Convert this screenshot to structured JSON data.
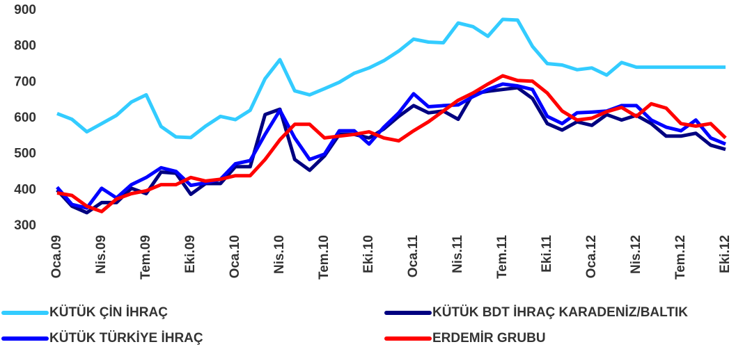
{
  "chart_data": {
    "type": "line",
    "categories": [
      "Oca.09",
      null,
      null,
      "Nis.09",
      null,
      null,
      "Tem.09",
      null,
      null,
      "Eki.09",
      null,
      null,
      "Oca.10",
      null,
      null,
      "Nis.10",
      null,
      null,
      "Tem.10",
      null,
      null,
      "Eki.10",
      null,
      null,
      "Oca.11",
      null,
      null,
      "Nis.11",
      null,
      null,
      "Tem.11",
      null,
      null,
      "Eki.11",
      null,
      null,
      "Oca.12",
      null,
      null,
      "Nis.12",
      null,
      null,
      "Tem.12",
      null,
      null,
      "Eki.12"
    ],
    "series": [
      {
        "name": "KÜTÜK ÇİN İHRAÇ",
        "color": "#33ccff",
        "values": [
          613,
          597,
          562,
          585,
          608,
          645,
          665,
          577,
          548,
          546,
          578,
          605,
          596,
          622,
          710,
          763,
          676,
          665,
          682,
          700,
          725,
          740,
          760,
          787,
          820,
          812,
          810,
          865,
          855,
          828,
          875,
          873,
          800,
          752,
          748,
          735,
          740,
          720,
          755,
          742,
          742,
          742,
          742,
          742,
          742,
          742
        ]
      },
      {
        "name": "KÜTÜK BDT İHRAÇ KARADENİZ/BALTIK",
        "color": "#000080",
        "values": [
          400,
          355,
          337,
          365,
          365,
          405,
          390,
          450,
          447,
          388,
          418,
          418,
          465,
          465,
          610,
          625,
          485,
          455,
          495,
          555,
          555,
          545,
          570,
          605,
          635,
          615,
          620,
          597,
          668,
          675,
          680,
          685,
          655,
          585,
          567,
          590,
          580,
          610,
          595,
          608,
          585,
          550,
          550,
          558,
          525,
          513
        ]
      },
      {
        "name": "KÜTÜK TÜRKİYE İHRAÇ",
        "color": "#0000ff",
        "values": [
          408,
          360,
          350,
          405,
          378,
          415,
          435,
          462,
          452,
          413,
          420,
          430,
          473,
          482,
          555,
          622,
          545,
          485,
          500,
          565,
          565,
          528,
          575,
          615,
          668,
          632,
          635,
          637,
          660,
          680,
          695,
          690,
          680,
          605,
          585,
          615,
          617,
          620,
          635,
          635,
          595,
          575,
          565,
          595,
          545,
          528
        ]
      },
      {
        "name": "ERDEMİR GRUBU",
        "color": "#ff0000",
        "values": [
          392,
          385,
          355,
          340,
          375,
          390,
          398,
          415,
          415,
          435,
          425,
          430,
          440,
          440,
          485,
          540,
          583,
          583,
          545,
          550,
          555,
          562,
          545,
          537,
          565,
          590,
          620,
          650,
          670,
          695,
          718,
          705,
          703,
          670,
          620,
          595,
          600,
          618,
          630,
          605,
          640,
          628,
          585,
          578,
          585,
          545
        ]
      }
    ],
    "ylim": [
      300,
      900
    ],
    "yticks": [
      300,
      400,
      500,
      600,
      700,
      800,
      900
    ]
  }
}
